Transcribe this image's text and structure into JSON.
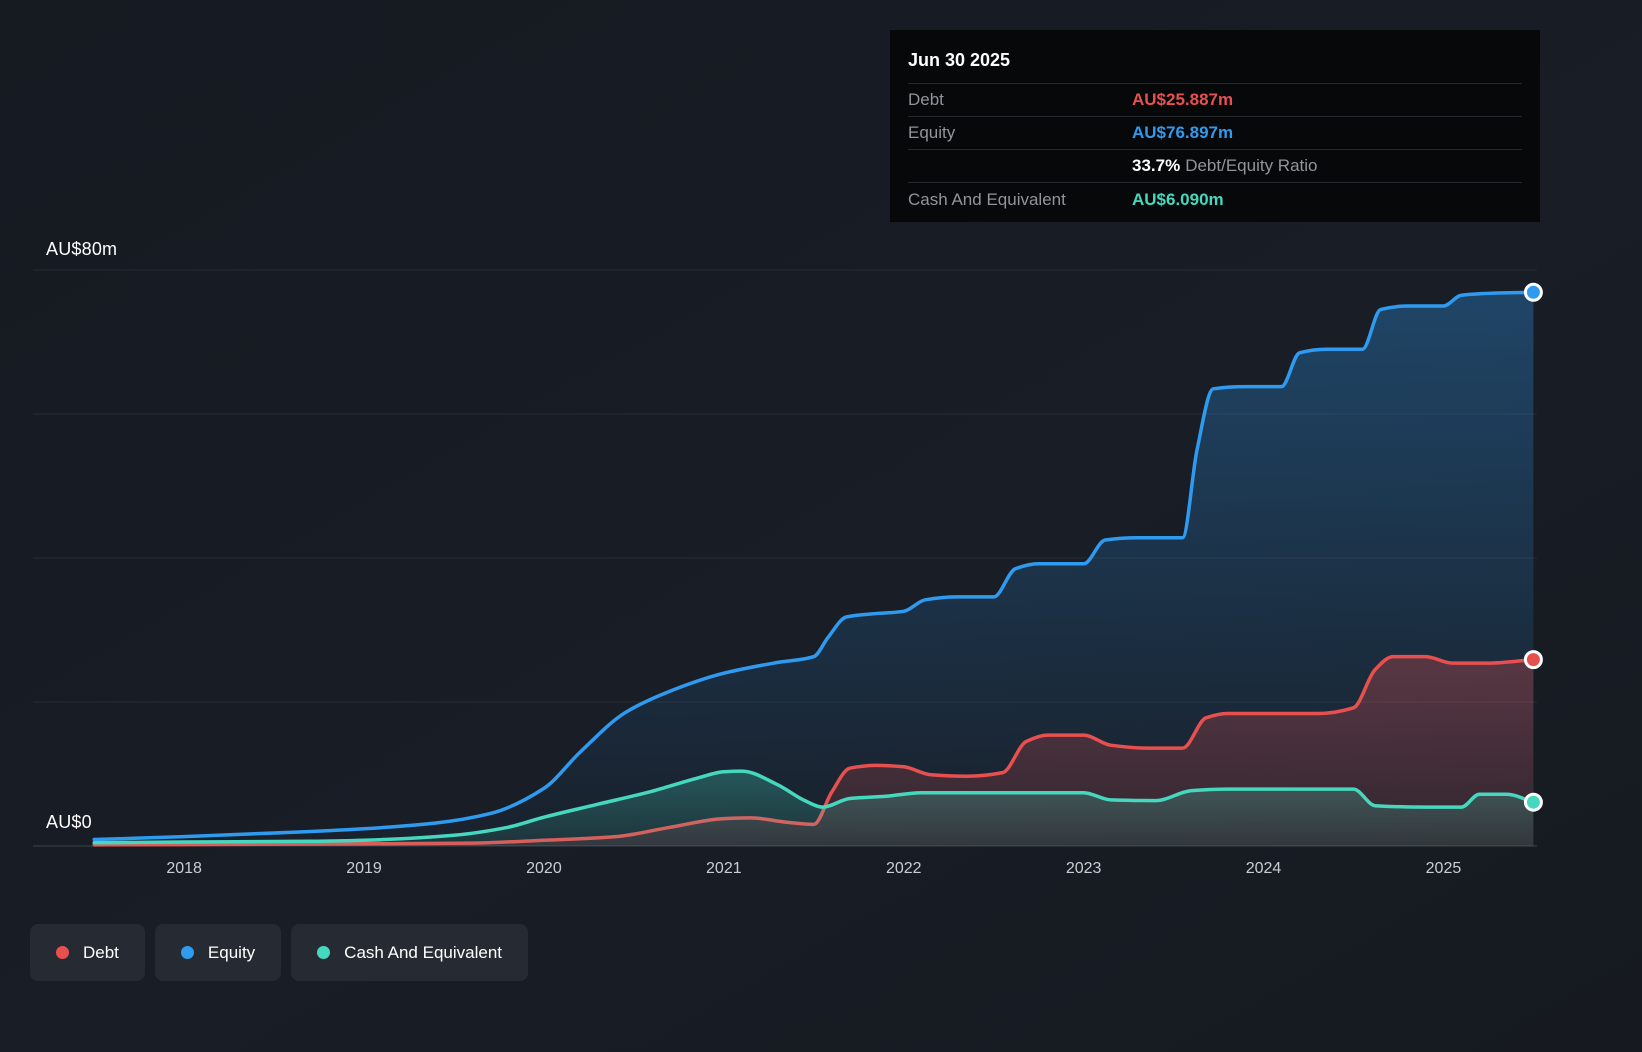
{
  "tooltip": {
    "title": "Jun 30 2025",
    "debt_label": "Debt",
    "debt_value": "AU$25.887m",
    "equity_label": "Equity",
    "equity_value": "AU$76.897m",
    "ratio_value": "33.7%",
    "ratio_label": "Debt/Equity Ratio",
    "cash_label": "Cash And Equivalent",
    "cash_value": "AU$6.090m"
  },
  "colors": {
    "debt": "#e8504f",
    "equity": "#2f9bf0",
    "cash": "#46d8be",
    "gridline": "#262b34",
    "axis_line": "#3d434d"
  },
  "axis": {
    "y_top_label": "AU$80m",
    "y_zero_label": "AU$0"
  },
  "legend": [
    {
      "label": "Debt",
      "color": "#e8504f"
    },
    {
      "label": "Equity",
      "color": "#2f9bf0"
    },
    {
      "label": "Cash And Equivalent",
      "color": "#46d8be"
    }
  ],
  "chart_data": {
    "type": "area",
    "x_range": [
      2017.16,
      2025.52
    ],
    "ylim": [
      0,
      80
    ],
    "y_unit": "AU$m",
    "gridlines": [
      0,
      20,
      40,
      60,
      80
    ],
    "x_ticks": [
      2018,
      2019,
      2020,
      2021,
      2022,
      2023,
      2024,
      2025
    ],
    "legend_position": "bottom-left",
    "grid": true,
    "series": [
      {
        "name": "Equity",
        "color": "#2f9bf0",
        "fill_top": 0.32,
        "fill_bottom": 0.03,
        "end_value": 76.897,
        "points": [
          [
            2017.5,
            0.9
          ],
          [
            2018,
            1.3
          ],
          [
            2018.5,
            1.8
          ],
          [
            2019,
            2.4
          ],
          [
            2019.4,
            3.2
          ],
          [
            2019.7,
            4.5
          ],
          [
            2020,
            8
          ],
          [
            2020.2,
            13
          ],
          [
            2020.45,
            18.5
          ],
          [
            2020.7,
            21.5
          ],
          [
            2021,
            24
          ],
          [
            2021.3,
            25.5
          ],
          [
            2021.5,
            26.3
          ],
          [
            2021.58,
            29
          ],
          [
            2021.68,
            31.8
          ],
          [
            2021.8,
            32.2
          ],
          [
            2022,
            32.6
          ],
          [
            2022.12,
            34.2
          ],
          [
            2022.3,
            34.6
          ],
          [
            2022.5,
            34.6
          ],
          [
            2022.62,
            38.5
          ],
          [
            2022.75,
            39.2
          ],
          [
            2023,
            39.2
          ],
          [
            2023.12,
            42.5
          ],
          [
            2023.3,
            42.8
          ],
          [
            2023.55,
            42.8
          ],
          [
            2023.63,
            55
          ],
          [
            2023.72,
            63.5
          ],
          [
            2023.9,
            63.8
          ],
          [
            2024.1,
            63.8
          ],
          [
            2024.2,
            68.5
          ],
          [
            2024.35,
            69
          ],
          [
            2024.55,
            69
          ],
          [
            2024.65,
            74.5
          ],
          [
            2024.8,
            75
          ],
          [
            2025,
            75
          ],
          [
            2025.1,
            76.5
          ],
          [
            2025.3,
            76.8
          ],
          [
            2025.5,
            76.897
          ]
        ]
      },
      {
        "name": "Debt",
        "color": "#e8504f",
        "fill_top": 0.3,
        "fill_bottom": 0.12,
        "end_value": 25.887,
        "points": [
          [
            2017.5,
            0.15
          ],
          [
            2018,
            0.2
          ],
          [
            2019,
            0.3
          ],
          [
            2019.6,
            0.4
          ],
          [
            2020,
            0.8
          ],
          [
            2020.4,
            1.3
          ],
          [
            2020.7,
            2.6
          ],
          [
            2021,
            3.8
          ],
          [
            2021.15,
            3.9
          ],
          [
            2021.35,
            3.3
          ],
          [
            2021.5,
            3.0
          ],
          [
            2021.6,
            7.5
          ],
          [
            2021.7,
            10.8
          ],
          [
            2021.85,
            11.2
          ],
          [
            2022,
            11.0
          ],
          [
            2022.15,
            9.9
          ],
          [
            2022.35,
            9.7
          ],
          [
            2022.55,
            10.2
          ],
          [
            2022.68,
            14.5
          ],
          [
            2022.8,
            15.4
          ],
          [
            2023,
            15.4
          ],
          [
            2023.15,
            14.0
          ],
          [
            2023.35,
            13.6
          ],
          [
            2023.55,
            13.6
          ],
          [
            2023.68,
            17.8
          ],
          [
            2023.8,
            18.4
          ],
          [
            2024,
            18.4
          ],
          [
            2024.3,
            18.4
          ],
          [
            2024.5,
            19.2
          ],
          [
            2024.62,
            24.5
          ],
          [
            2024.72,
            26.3
          ],
          [
            2024.9,
            26.3
          ],
          [
            2025.05,
            25.4
          ],
          [
            2025.25,
            25.4
          ],
          [
            2025.5,
            25.887
          ]
        ]
      },
      {
        "name": "Cash And Equivalent",
        "color": "#46d8be",
        "fill_top": 0.28,
        "fill_bottom": 0.1,
        "end_value": 6.09,
        "points": [
          [
            2017.5,
            0.45
          ],
          [
            2018,
            0.55
          ],
          [
            2018.7,
            0.65
          ],
          [
            2019,
            0.8
          ],
          [
            2019.5,
            1.5
          ],
          [
            2019.8,
            2.6
          ],
          [
            2020,
            4.0
          ],
          [
            2020.3,
            5.8
          ],
          [
            2020.6,
            7.6
          ],
          [
            2020.85,
            9.4
          ],
          [
            2021,
            10.3
          ],
          [
            2021.1,
            10.4
          ],
          [
            2021.3,
            8.5
          ],
          [
            2021.45,
            6.3
          ],
          [
            2021.55,
            5.4
          ],
          [
            2021.7,
            6.6
          ],
          [
            2021.9,
            6.9
          ],
          [
            2022.1,
            7.4
          ],
          [
            2022.5,
            7.4
          ],
          [
            2023,
            7.4
          ],
          [
            2023.15,
            6.4
          ],
          [
            2023.4,
            6.3
          ],
          [
            2023.6,
            7.7
          ],
          [
            2023.8,
            7.9
          ],
          [
            2024.2,
            7.9
          ],
          [
            2024.5,
            7.9
          ],
          [
            2024.62,
            5.6
          ],
          [
            2024.9,
            5.4
          ],
          [
            2025.1,
            5.4
          ],
          [
            2025.2,
            7.2
          ],
          [
            2025.35,
            7.2
          ],
          [
            2025.5,
            6.09
          ]
        ]
      }
    ]
  }
}
